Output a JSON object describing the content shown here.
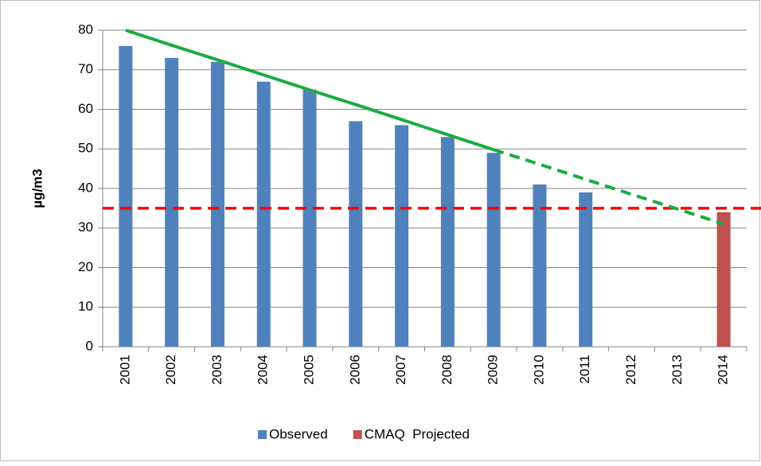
{
  "chart_data": {
    "type": "bar",
    "y_label": "µg/m3",
    "categories": [
      "2001",
      "2002",
      "2003",
      "2004",
      "2005",
      "2006",
      "2007",
      "2008",
      "2009",
      "2010",
      "2011",
      "2012",
      "2013",
      "2014"
    ],
    "series": [
      {
        "name": "Observed",
        "color": "#4f81bd",
        "values": [
          76,
          73,
          72,
          67,
          65,
          57,
          56,
          53,
          49,
          41,
          39,
          null,
          null,
          null
        ]
      },
      {
        "name": "CMAQ  Projected",
        "color": "#c0504d",
        "values": [
          null,
          null,
          null,
          null,
          null,
          null,
          null,
          null,
          null,
          null,
          null,
          null,
          null,
          34
        ]
      }
    ],
    "trend_lines": [
      {
        "color": "#1aab40",
        "dashed": false,
        "values": [
          80,
          76.2,
          72.5,
          68.7,
          64.9,
          61.2,
          57.4,
          53.6,
          49.8,
          null,
          null,
          null,
          null,
          null
        ]
      },
      {
        "color": "#1aab40",
        "dashed": true,
        "values": [
          null,
          null,
          null,
          null,
          null,
          null,
          null,
          null,
          49.8,
          46.1,
          42.3,
          38.5,
          34.8,
          31
        ]
      }
    ],
    "reference_line": {
      "value": 35,
      "color": "#ff0000",
      "dashed": true
    },
    "ylim": [
      0,
      80
    ],
    "yticks": [
      0,
      10,
      20,
      30,
      40,
      50,
      60,
      70,
      80
    ],
    "grid": true
  }
}
